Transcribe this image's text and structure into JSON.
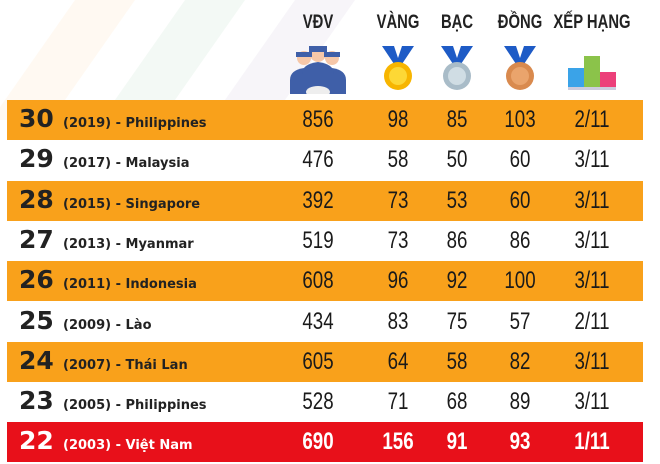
{
  "colors": {
    "orange": "#f9a11b",
    "highlight": "#e8101a"
  },
  "chart_data": {
    "type": "table",
    "columns": [
      "VĐV",
      "VÀNG",
      "BẠC",
      "ĐỒNG",
      "XẾP HẠNG"
    ],
    "column_icons": [
      "athletes-icon",
      "gold-medal-icon",
      "silver-medal-icon",
      "bronze-medal-icon",
      "podium-icon"
    ],
    "rows": [
      {
        "edition": "30",
        "label": "(2019) - Philippines",
        "values": [
          "856",
          "98",
          "85",
          "103",
          "2/11"
        ]
      },
      {
        "edition": "29",
        "label": "(2017) - Malaysia",
        "values": [
          "476",
          "58",
          "50",
          "60",
          "3/11"
        ]
      },
      {
        "edition": "28",
        "label": "(2015) - Singapore",
        "values": [
          "392",
          "73",
          "53",
          "60",
          "3/11"
        ]
      },
      {
        "edition": "27",
        "label": "(2013) - Myanmar",
        "values": [
          "519",
          "73",
          "86",
          "86",
          "3/11"
        ]
      },
      {
        "edition": "26",
        "label": "(2011) - Indonesia",
        "values": [
          "608",
          "96",
          "92",
          "100",
          "3/11"
        ]
      },
      {
        "edition": "25",
        "label": "(2009) - Lào",
        "values": [
          "434",
          "83",
          "75",
          "57",
          "2/11"
        ]
      },
      {
        "edition": "24",
        "label": "(2007) - Thái Lan",
        "values": [
          "605",
          "64",
          "58",
          "82",
          "3/11"
        ]
      },
      {
        "edition": "23",
        "label": "(2005) - Philippines",
        "values": [
          "528",
          "71",
          "68",
          "89",
          "3/11"
        ]
      },
      {
        "edition": "22",
        "label": "(2003) - Việt Nam",
        "values": [
          "690",
          "156",
          "91",
          "93",
          "1/11"
        ]
      }
    ]
  }
}
